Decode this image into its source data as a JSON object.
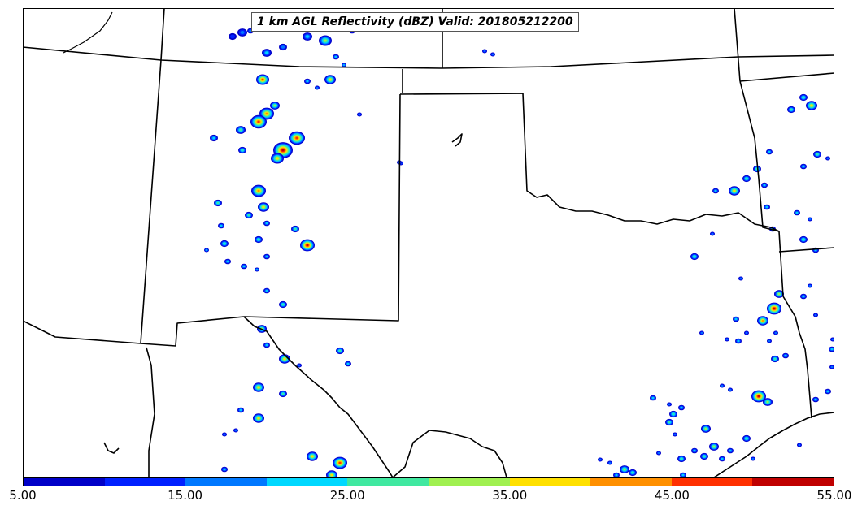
{
  "title": "1 km AGL Reflectivity (dBZ) Valid: 201805212200",
  "field": "reflectivity",
  "units": "dBZ",
  "valid_time": "201805212200",
  "colorbar": {
    "min": 5.0,
    "max": 55.0,
    "step": 5.0,
    "tick_labels": [
      "5.00",
      "15.00",
      "25.00",
      "35.00",
      "45.00",
      "55.00"
    ],
    "colors": [
      "#0000c8",
      "#0020ff",
      "#0078ff",
      "#00d8ff",
      "#40e8a0",
      "#a0f050",
      "#ffe000",
      "#ff9000",
      "#ff3000",
      "#c00000"
    ]
  },
  "colors": {
    "boundary": "#000000",
    "background": "#ffffff"
  }
}
